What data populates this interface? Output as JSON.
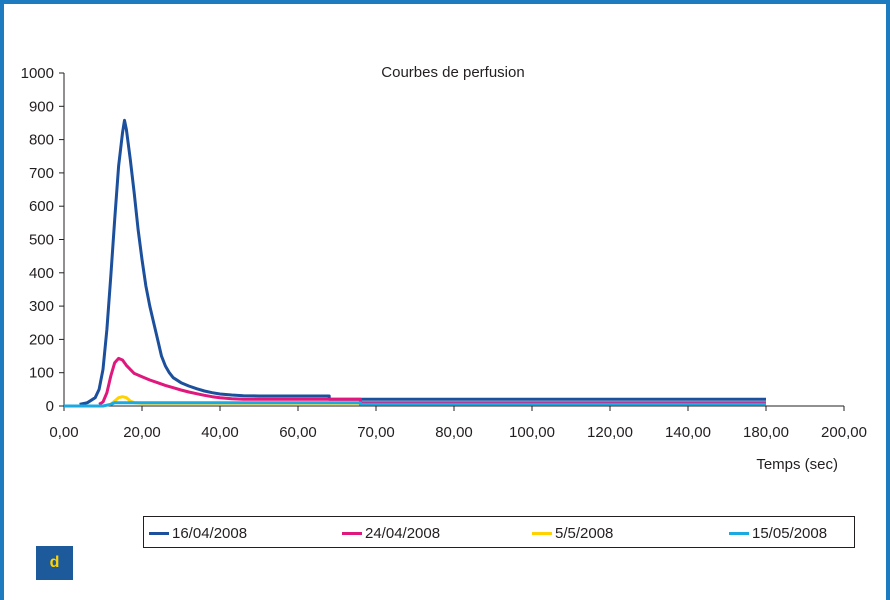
{
  "panel_letter": "d",
  "colors": {
    "frame": "#1f7bc0",
    "badge": "#1c5a9c",
    "badge_text": "#ffd200"
  },
  "chart_data": {
    "type": "line",
    "title": "Courbes de perfusion",
    "xlabel": "Temps (sec)",
    "ylabel": "",
    "ylim": [
      0,
      1000
    ],
    "yticks": [
      0,
      100,
      200,
      300,
      400,
      500,
      600,
      700,
      800,
      900,
      1000
    ],
    "xtick_labels": [
      "0,00",
      "20,00",
      "40,00",
      "60,00",
      "70,00",
      "80,00",
      "100,00",
      "120,00",
      "140,00",
      "180,00",
      "200,00"
    ],
    "grid": false,
    "legend": "bottom",
    "series": [
      {
        "name": "16/04/2008",
        "color": "#1c4f9c",
        "points": [
          [
            4,
            5
          ],
          [
            6,
            10
          ],
          [
            8,
            25
          ],
          [
            9,
            50
          ],
          [
            10,
            110
          ],
          [
            11,
            230
          ],
          [
            12,
            390
          ],
          [
            13,
            560
          ],
          [
            14,
            720
          ],
          [
            15,
            820
          ],
          [
            15.5,
            858
          ],
          [
            16,
            830
          ],
          [
            17,
            740
          ],
          [
            18,
            640
          ],
          [
            19,
            530
          ],
          [
            20,
            440
          ],
          [
            21,
            360
          ],
          [
            22,
            300
          ],
          [
            23,
            250
          ],
          [
            24,
            200
          ],
          [
            25,
            150
          ],
          [
            26,
            120
          ],
          [
            27,
            100
          ],
          [
            28,
            85
          ],
          [
            30,
            70
          ],
          [
            32,
            60
          ],
          [
            34,
            52
          ],
          [
            36,
            45
          ],
          [
            38,
            40
          ],
          [
            40,
            36
          ],
          [
            43,
            33
          ],
          [
            46,
            31
          ],
          [
            50,
            30
          ],
          [
            55,
            30
          ],
          [
            60,
            30
          ],
          [
            68,
            30
          ],
          [
            68,
            20
          ],
          [
            70,
            20
          ],
          [
            80,
            20
          ],
          [
            100,
            20
          ],
          [
            120,
            20
          ],
          [
            140,
            20
          ],
          [
            180,
            20
          ]
        ]
      },
      {
        "name": "24/04/2008",
        "color": "#e0177c",
        "points": [
          [
            9,
            5
          ],
          [
            10,
            12
          ],
          [
            11,
            40
          ],
          [
            12,
            90
          ],
          [
            13,
            130
          ],
          [
            14,
            143
          ],
          [
            15,
            138
          ],
          [
            16,
            122
          ],
          [
            17,
            110
          ],
          [
            18,
            98
          ],
          [
            20,
            88
          ],
          [
            22,
            78
          ],
          [
            24,
            70
          ],
          [
            26,
            62
          ],
          [
            28,
            55
          ],
          [
            30,
            48
          ],
          [
            32,
            42
          ],
          [
            34,
            37
          ],
          [
            36,
            32
          ],
          [
            38,
            28
          ],
          [
            40,
            25
          ],
          [
            43,
            22
          ],
          [
            46,
            20
          ],
          [
            50,
            20
          ],
          [
            60,
            20
          ],
          [
            70,
            20
          ],
          [
            76,
            20
          ],
          [
            76,
            10
          ],
          [
            80,
            10
          ],
          [
            100,
            10
          ],
          [
            120,
            10
          ],
          [
            140,
            10
          ],
          [
            180,
            10
          ]
        ]
      },
      {
        "name": "5/5/2008",
        "color": "#ffd200",
        "points": [
          [
            12,
            5
          ],
          [
            13,
            15
          ],
          [
            14,
            25
          ],
          [
            15,
            28
          ],
          [
            16,
            25
          ],
          [
            17,
            15
          ],
          [
            18,
            10
          ],
          [
            20,
            8
          ],
          [
            30,
            8
          ],
          [
            40,
            8
          ],
          [
            50,
            8
          ],
          [
            60,
            8
          ],
          [
            70,
            8
          ],
          [
            76,
            8
          ]
        ]
      },
      {
        "name": "15/05/2008",
        "color": "#1aa9e1",
        "points": [
          [
            0,
            0
          ],
          [
            10,
            0
          ],
          [
            12,
            5
          ],
          [
            13,
            10
          ],
          [
            20,
            10
          ],
          [
            30,
            10
          ],
          [
            40,
            10
          ],
          [
            50,
            10
          ],
          [
            60,
            10
          ],
          [
            70,
            10
          ],
          [
            76,
            10
          ],
          [
            76,
            5
          ],
          [
            80,
            5
          ],
          [
            100,
            5
          ],
          [
            120,
            5
          ],
          [
            140,
            5
          ],
          [
            180,
            5
          ]
        ]
      }
    ]
  }
}
